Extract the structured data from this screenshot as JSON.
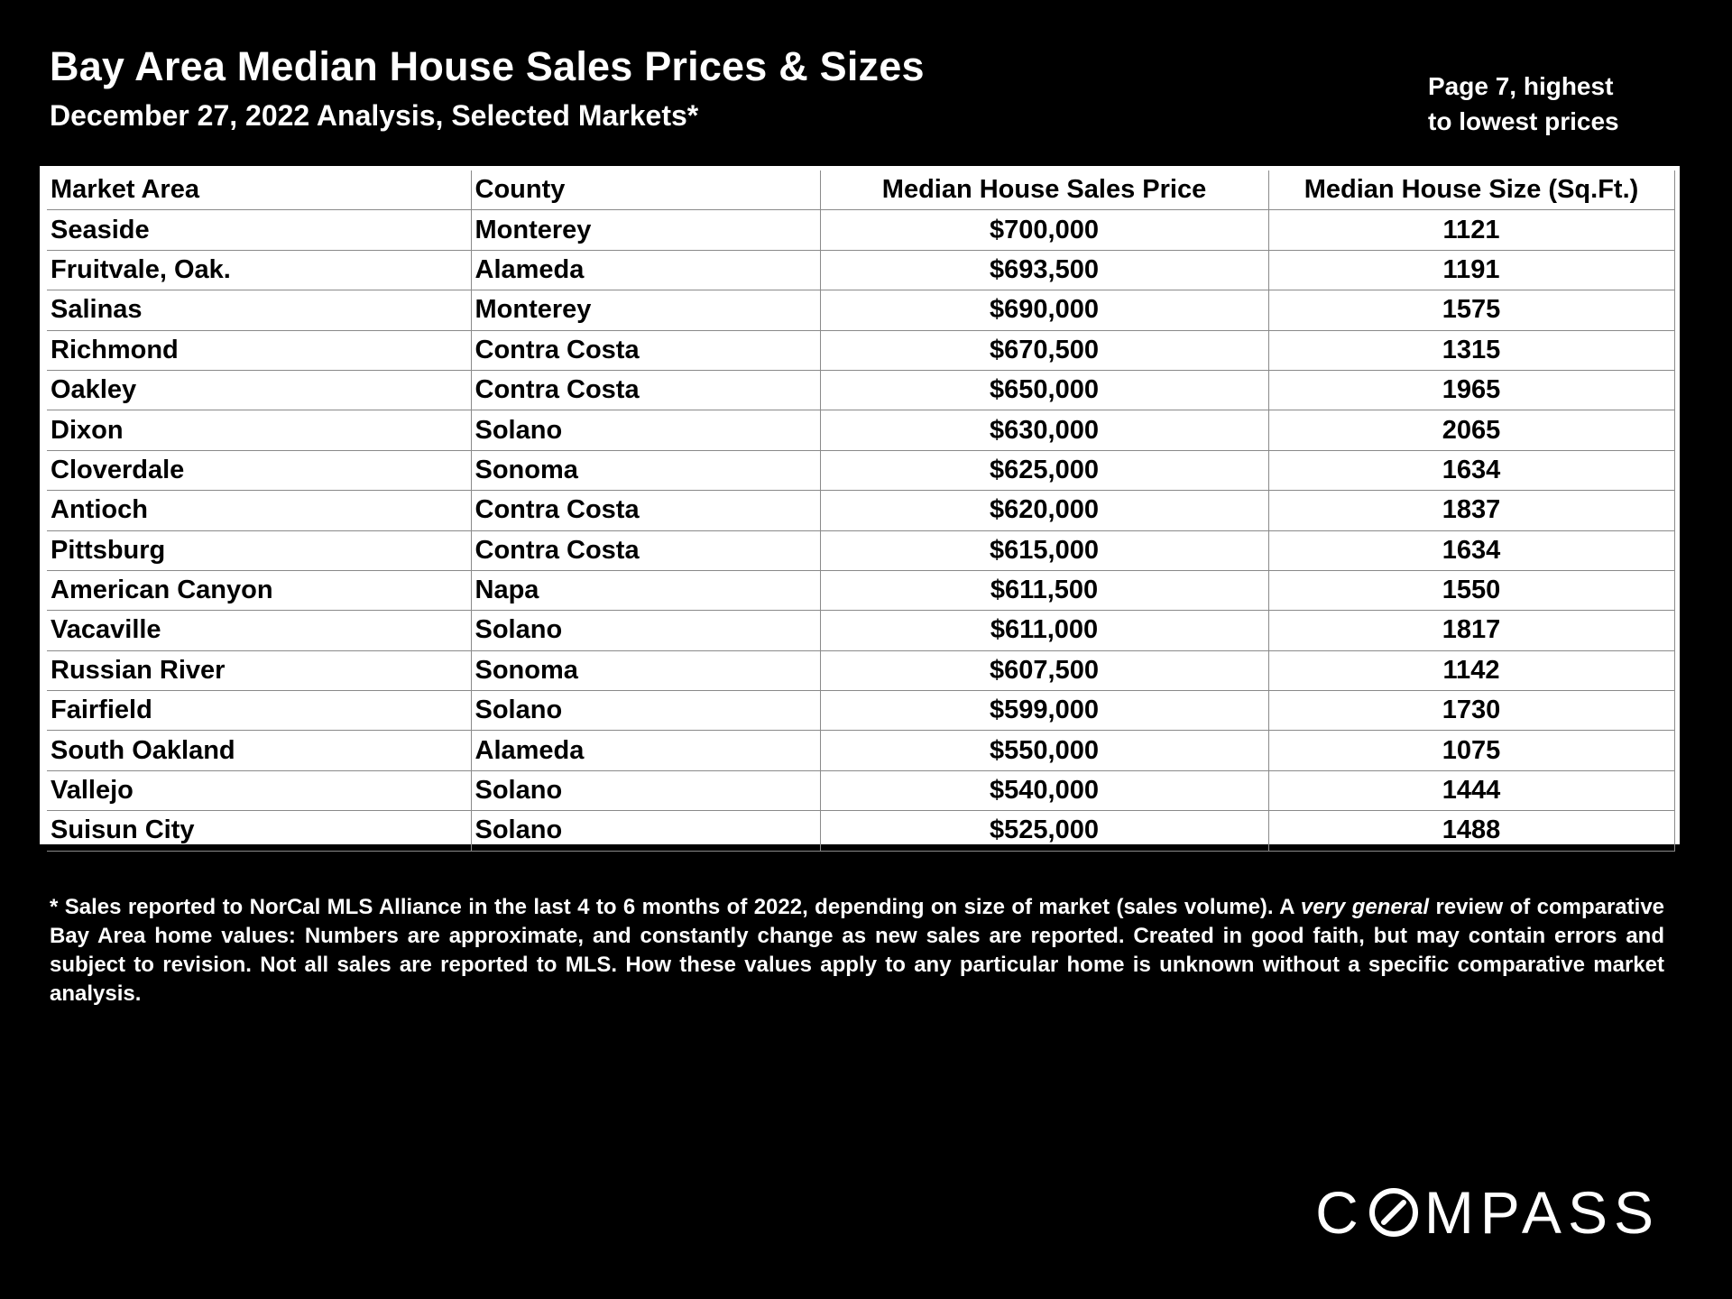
{
  "header": {
    "title": "Bay Area Median House Sales Prices & Sizes",
    "subtitle": "December 27, 2022 Analysis, Selected Markets*",
    "page_note_line1": "Page 7, highest",
    "page_note_line2": "to lowest prices"
  },
  "table": {
    "columns": [
      "Market Area",
      "County",
      "Median House Sales Price",
      "Median House Size (Sq.Ft.)"
    ],
    "rows": [
      [
        "Seaside",
        "Monterey",
        "$700,000",
        "1121"
      ],
      [
        "Fruitvale, Oak.",
        "Alameda",
        "$693,500",
        "1191"
      ],
      [
        "Salinas",
        "Monterey",
        "$690,000",
        "1575"
      ],
      [
        "Richmond",
        "Contra Costa",
        "$670,500",
        "1315"
      ],
      [
        "Oakley",
        "Contra Costa",
        "$650,000",
        "1965"
      ],
      [
        "Dixon",
        "Solano",
        "$630,000",
        "2065"
      ],
      [
        "Cloverdale",
        "Sonoma",
        "$625,000",
        "1634"
      ],
      [
        "Antioch",
        "Contra Costa",
        "$620,000",
        "1837"
      ],
      [
        "Pittsburg",
        "Contra Costa",
        "$615,000",
        "1634"
      ],
      [
        "American Canyon",
        "Napa",
        "$611,500",
        "1550"
      ],
      [
        "Vacaville",
        "Solano",
        "$611,000",
        "1817"
      ],
      [
        "Russian River",
        "Sonoma",
        "$607,500",
        "1142"
      ],
      [
        "Fairfield",
        "Solano",
        "$599,000",
        "1730"
      ],
      [
        "South Oakland",
        "Alameda",
        "$550,000",
        "1075"
      ],
      [
        "Vallejo",
        "Solano",
        "$540,000",
        "1444"
      ],
      [
        "Suisun City",
        "Solano",
        "$525,000",
        "1488"
      ]
    ]
  },
  "footnote": {
    "part1": "* Sales reported to NorCal MLS Alliance in the last 4 to 6 months of 2022, depending on size of market (sales volume). A ",
    "emphasis": "very general",
    "part2": " review of comparative Bay Area home values:  Numbers are approximate, and constantly change as new sales are reported. Created in good faith, but may contain errors and subject to revision. Not all sales are reported to MLS. How these values apply to any particular home is unknown without a specific comparative market analysis."
  },
  "logo": {
    "text": "COMPASS",
    "part_before": "C",
    "part_after": "MPASS"
  },
  "colors": {
    "background": "#000000",
    "text": "#ffffff",
    "table_background": "#ffffff",
    "table_text": "#000000",
    "table_border": "#8a8a8a"
  }
}
